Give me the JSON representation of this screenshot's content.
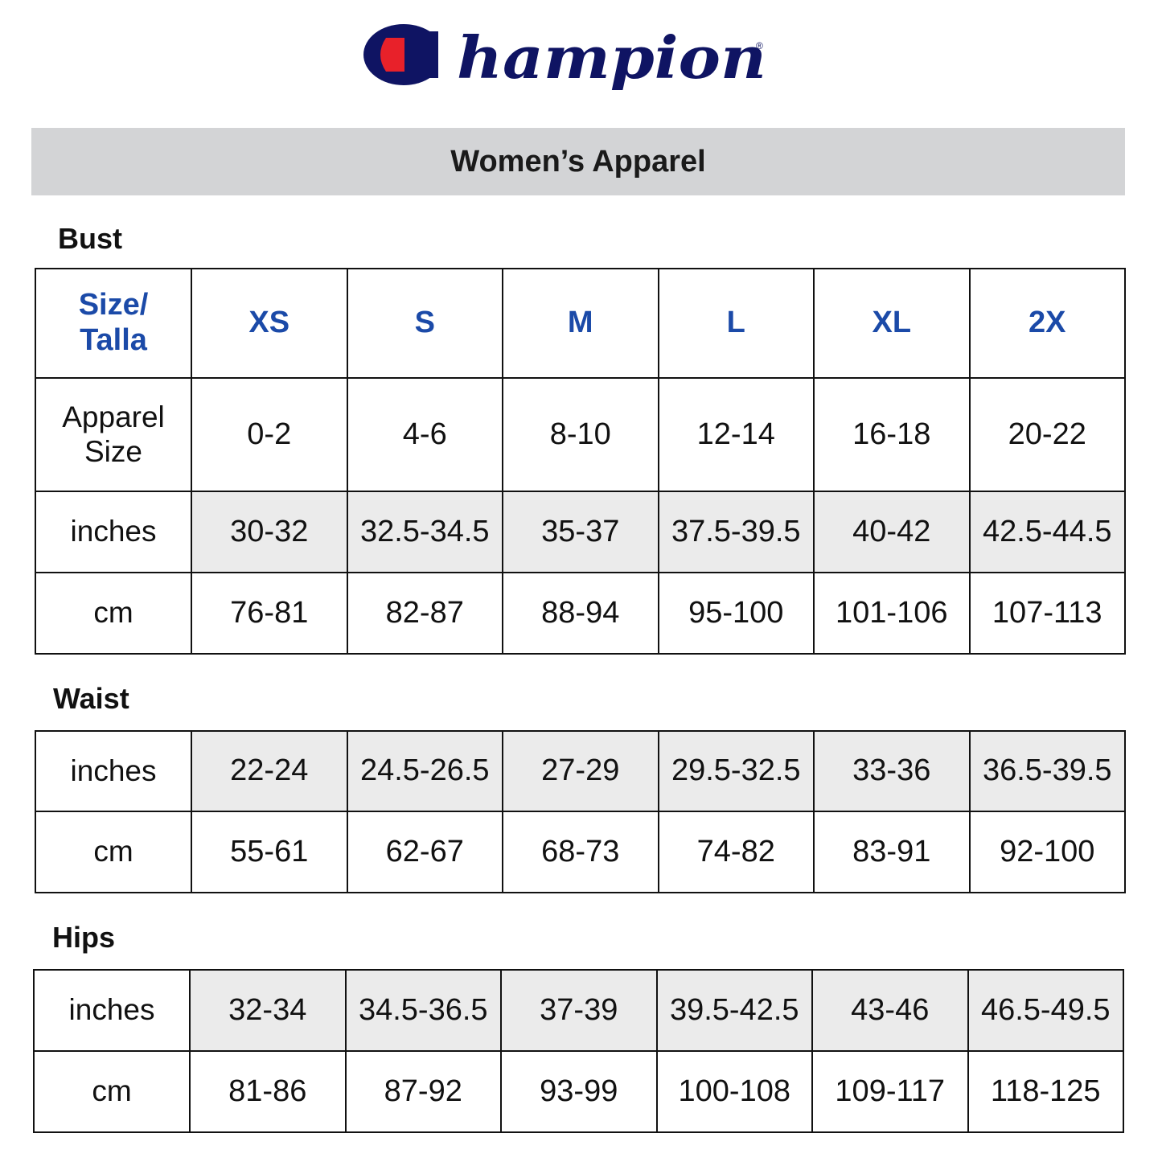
{
  "logo": {
    "text": "Champion",
    "registered": "®",
    "colors": {
      "navy": "#0f1463",
      "red": "#e8212a"
    }
  },
  "banner": {
    "title": "Women’s Apparel"
  },
  "colors": {
    "header_blue": "#1b4aa8",
    "banner_gray": "#d3d4d6",
    "shaded_cell": "#ebebeb"
  },
  "bust": {
    "title": "Bust",
    "header": {
      "label": "Size/\nTalla",
      "sizes": [
        "XS",
        "S",
        "M",
        "L",
        "XL",
        "2X"
      ]
    },
    "rows": [
      {
        "label": "Apparel\nSize",
        "values": [
          "0-2",
          "4-6",
          "8-10",
          "12-14",
          "16-18",
          "20-22"
        ]
      },
      {
        "label": "inches",
        "values": [
          "30-32",
          "32.5-34.5",
          "35-37",
          "37.5-39.5",
          "40-42",
          "42.5-44.5"
        ]
      },
      {
        "label": "cm",
        "values": [
          "76-81",
          "82-87",
          "88-94",
          "95-100",
          "101-106",
          "107-113"
        ]
      }
    ]
  },
  "waist": {
    "title": "Waist",
    "rows": [
      {
        "label": "inches",
        "values": [
          "22-24",
          "24.5-26.5",
          "27-29",
          "29.5-32.5",
          "33-36",
          "36.5-39.5"
        ]
      },
      {
        "label": "cm",
        "values": [
          "55-61",
          "62-67",
          "68-73",
          "74-82",
          "83-91",
          "92-100"
        ]
      }
    ]
  },
  "hips": {
    "title": "Hips",
    "rows": [
      {
        "label": "inches",
        "values": [
          "32-34",
          "34.5-36.5",
          "37-39",
          "39.5-42.5",
          "43-46",
          "46.5-49.5"
        ]
      },
      {
        "label": "cm",
        "values": [
          "81-86",
          "87-92",
          "93-99",
          "100-108",
          "109-117",
          "118-125"
        ]
      }
    ]
  }
}
